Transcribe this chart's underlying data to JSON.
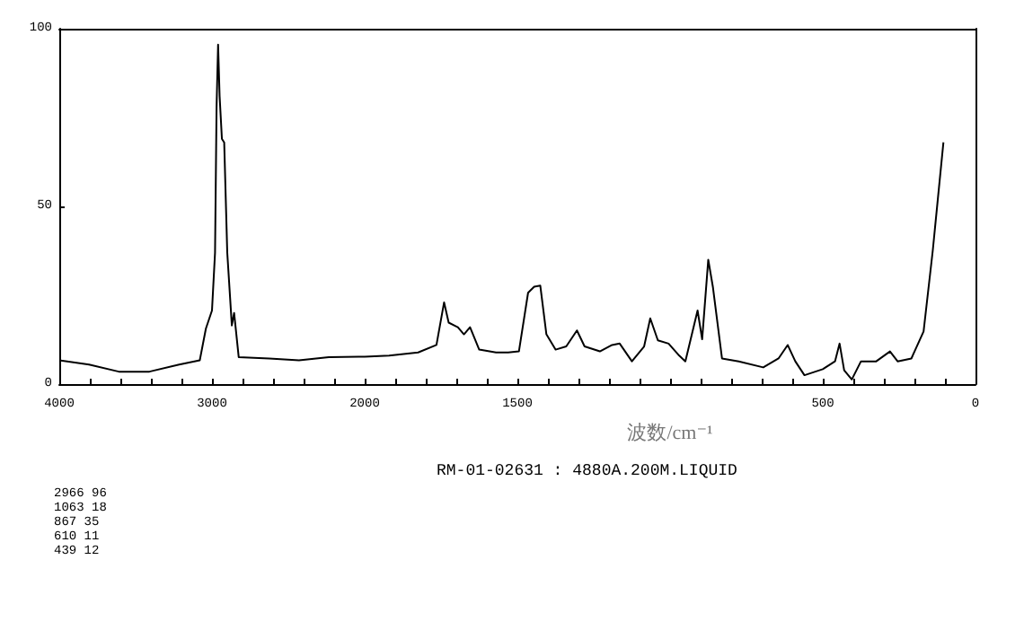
{
  "chart_data": [
    {
      "type": "line",
      "xlim": [
        4000,
        2000
      ],
      "ylim": [
        0,
        100
      ],
      "xticks": [
        4000,
        {
          "value": 3800,
          "label": null
        },
        {
          "value": 3600,
          "label": null
        },
        {
          "value": 3400,
          "label": null
        },
        {
          "value": 3200,
          "label": null
        },
        3000,
        {
          "value": 2800,
          "label": null
        },
        {
          "value": 2600,
          "label": null
        },
        {
          "value": 2400,
          "label": null
        },
        {
          "value": 2200,
          "label": null
        },
        2000
      ],
      "yticks": [
        0,
        50,
        100
      ],
      "series": [
        {
          "color": "#000000",
          "x": [
            4000,
            3805,
            3610,
            3410,
            3215,
            3080,
            3040,
            3000,
            2980,
            2970,
            2960,
            2950,
            2935,
            2920,
            2900,
            2870,
            2855,
            2825,
            2625,
            2430,
            2235,
            2040,
            2000
          ],
          "values": [
            6.7,
            5.5,
            3.5,
            3.5,
            5.5,
            6.7,
            15.6,
            20.7,
            37,
            78,
            95.5,
            81,
            69,
            68,
            37,
            16.5,
            20,
            7.6,
            7.2,
            6.7,
            7.6,
            7.7,
            7.7
          ]
        }
      ],
      "annotations": [
        "2966 96",
        "1063 18",
        "867 35",
        "610 11",
        "439 12"
      ]
    },
    {
      "type": "line",
      "xlim": [
        2000,
        0
      ],
      "ylim": [
        0,
        100
      ],
      "tick_labels": "x",
      "xticks": [
        {
          "value": 1900,
          "label": null
        },
        {
          "value": 1800,
          "label": null
        },
        {
          "value": 1700,
          "label": null
        },
        {
          "value": 1600,
          "label": null
        },
        1500,
        {
          "value": 1400,
          "label": null
        },
        {
          "value": 1300,
          "label": null
        },
        {
          "value": 1200,
          "label": null
        },
        {
          "value": 1100,
          "label": null
        },
        {
          "value": 1000,
          "label": null
        },
        {
          "value": 900,
          "label": null
        },
        {
          "value": 800,
          "label": null
        },
        {
          "value": 700,
          "label": null
        },
        {
          "value": 600,
          "label": null
        },
        500,
        {
          "value": 400,
          "label": null
        },
        {
          "value": 300,
          "label": null
        },
        {
          "value": 200,
          "label": null
        },
        {
          "value": 100,
          "label": null
        },
        0
      ],
      "xlabel": "波数/cm⁻¹",
      "series": [
        {
          "color": "#000000",
          "x": [
            2000,
            1920,
            1825,
            1765,
            1740,
            1725,
            1695,
            1675,
            1655,
            1625,
            1570,
            1530,
            1495,
            1465,
            1445,
            1425,
            1405,
            1375,
            1340,
            1305,
            1280,
            1230,
            1190,
            1165,
            1125,
            1085,
            1065,
            1040,
            1005,
            970,
            950,
            910,
            895,
            875,
            860,
            830,
            775,
            695,
            645,
            615,
            590,
            560,
            500,
            460,
            445,
            430,
            405,
            375,
            325,
            280,
            255,
            210,
            170,
            140,
            105
          ],
          "values": [
            7.7,
            8,
            8.9,
            11,
            23,
            17.3,
            16,
            14,
            16,
            9.7,
            8.9,
            8.9,
            9.2,
            25.7,
            27.4,
            27.7,
            14,
            9.7,
            10.6,
            15.1,
            10.6,
            9.2,
            11,
            11.4,
            6.4,
            10.6,
            18.5,
            12.3,
            11.4,
            8,
            6.4,
            20.7,
            12.6,
            35,
            27.4,
            7.2,
            6.4,
            4.7,
            7.2,
            11,
            6.4,
            2.5,
            4.2,
            6.4,
            11.4,
            3.9,
            1.3,
            6.4,
            6.4,
            9.2,
            6.4,
            7.2,
            14.8,
            37.5,
            68
          ]
        }
      ],
      "annotations": [
        "RM-01-02631 : 4880A.200M.LIQUID"
      ]
    }
  ]
}
